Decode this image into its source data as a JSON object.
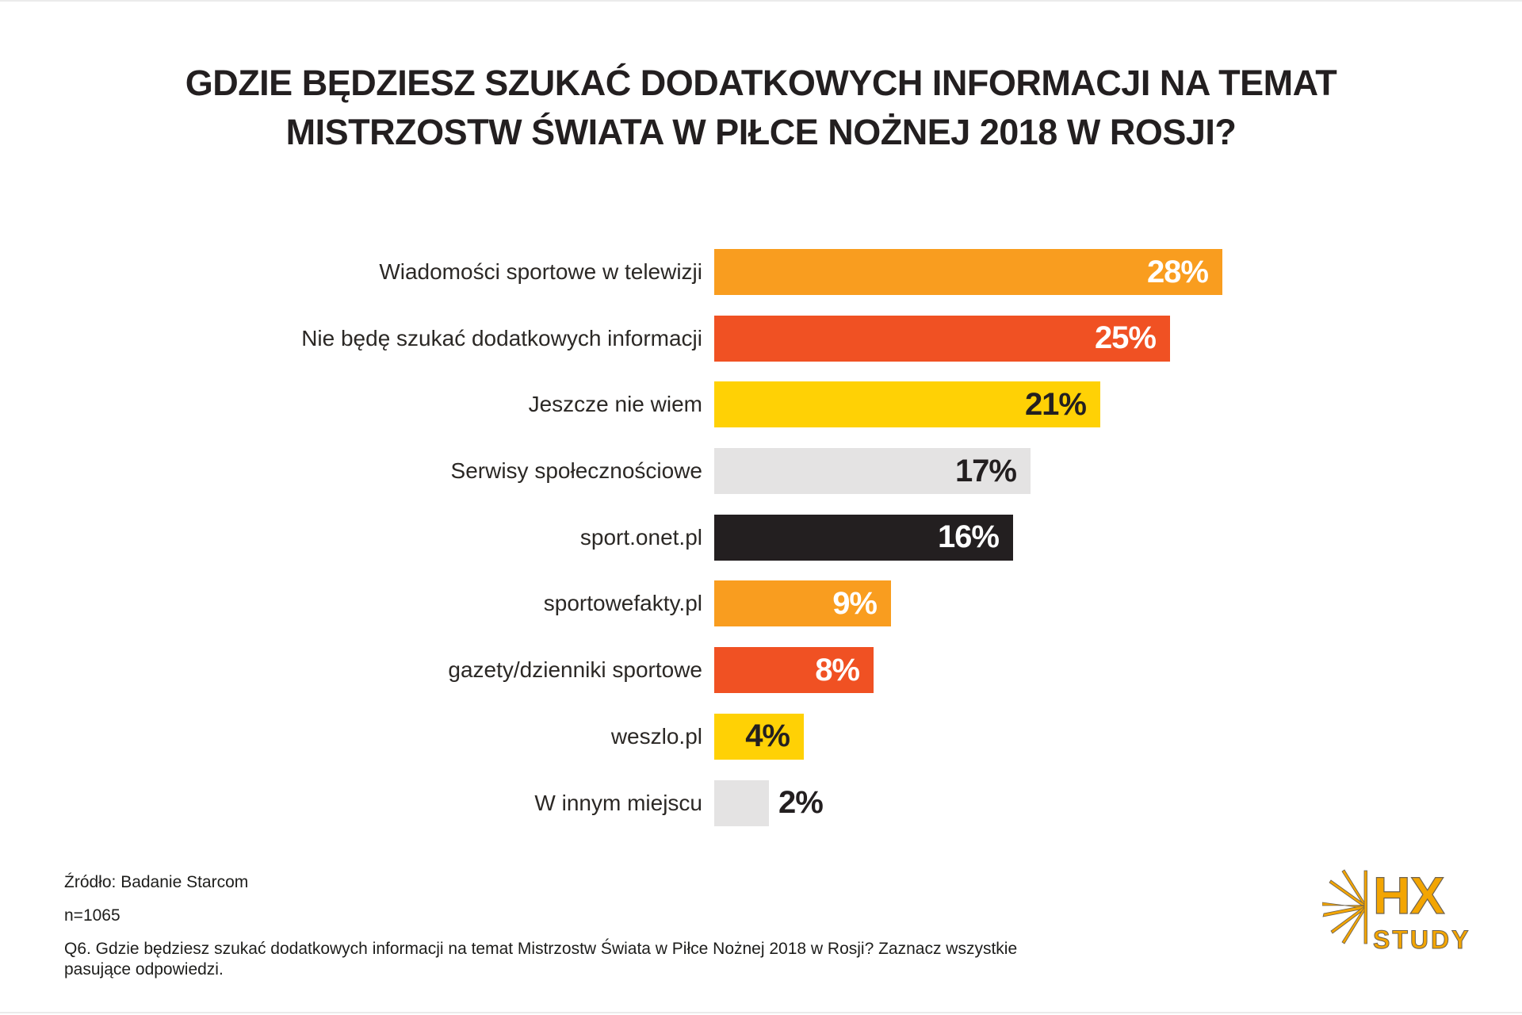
{
  "page": {
    "title_line1": "GDZIE BĘDZIESZ SZUKAĆ DODATKOWYCH INFORMACJI NA TEMAT",
    "title_line2": "MISTRZOSTW ŚWIATA W PIŁCE NOŻNEJ 2018 W ROSJI?"
  },
  "chart_data": {
    "type": "bar",
    "orientation": "horizontal",
    "title": "Gdzie będziesz szukać dodatkowych informacji na temat Mistrzostw Świata w Piłce Nożnej 2018 w Rosji?",
    "unit": "%",
    "categories": [
      "Wiadomości sportowe w telewizji",
      "Nie będę szukać dodatkowych informacji",
      "Jeszcze nie wiem",
      "Serwisy społecznościowe",
      "sport.onet.pl",
      "sportowefakty.pl",
      "gazety/dzienniki sportowe",
      "weszlo.pl",
      "W innym miejscu"
    ],
    "values": [
      28,
      25,
      21,
      17,
      16,
      9,
      8,
      4,
      2
    ],
    "bar_colors": [
      "#F99D1F",
      "#F05123",
      "#FFD105",
      "#E4E3E3",
      "#231F20",
      "#F99D1F",
      "#F05123",
      "#FFD105",
      "#E4E3E3"
    ],
    "value_label_colors": [
      "#FFFFFF",
      "#FFFFFF",
      "#231F20",
      "#231F20",
      "#FFFFFF",
      "#FFFFFF",
      "#FFFFFF",
      "#231F20",
      "#231F20"
    ],
    "value_label_positions": [
      "inside",
      "inside",
      "inside",
      "inside",
      "inside",
      "inside",
      "inside",
      "inside",
      "outside"
    ],
    "xlim": [
      0,
      30
    ],
    "grid": false,
    "legend": false
  },
  "footer": {
    "source": "Źródło: Badanie Starcom",
    "sample": "n=1065",
    "question_note": "Q6. Gdzie będziesz szukać dodatkowych informacji na temat Mistrzostw Świata w Piłce Nożnej 2018 w Rosji? Zaznacz wszystkie pasujące odpowiedzi."
  },
  "logo": {
    "primary": "HX",
    "secondary": "STUDY",
    "color": "#F3A502"
  }
}
